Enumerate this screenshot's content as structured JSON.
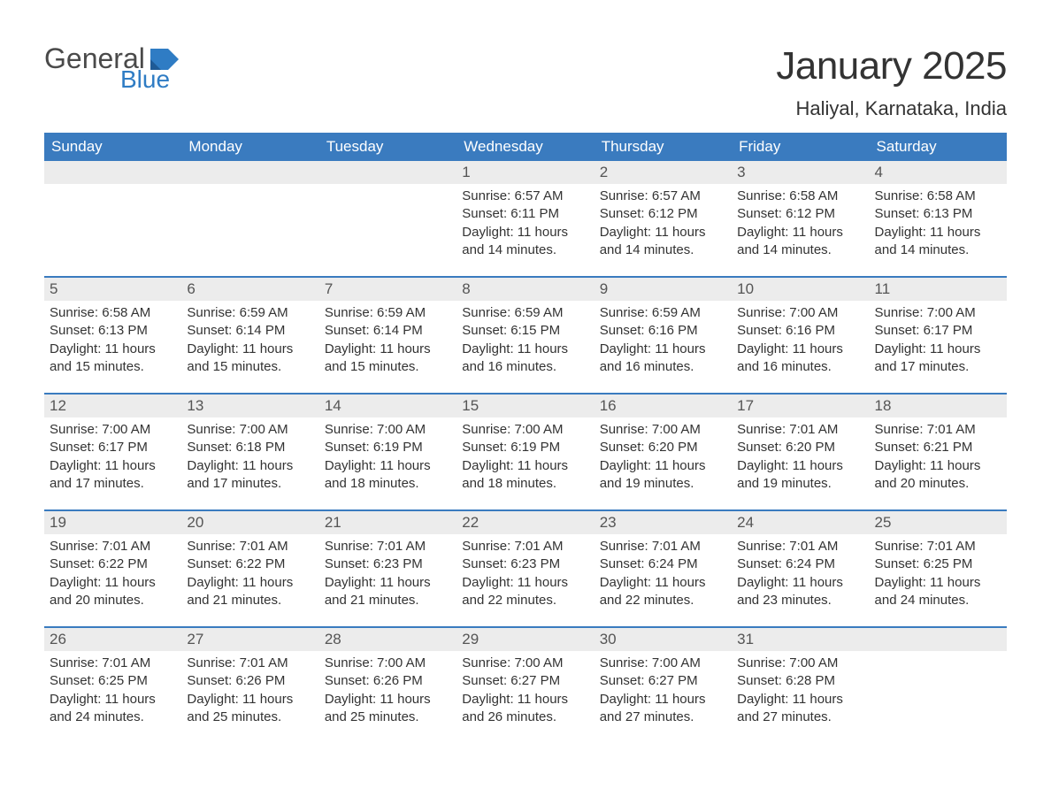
{
  "logo": {
    "general": "General",
    "blue": "Blue",
    "shape_color": "#2f7cc4"
  },
  "title": "January 2025",
  "location": "Haliyal, Karnataka, India",
  "colors": {
    "header_bg": "#3a7bbf",
    "header_text": "#ffffff",
    "daynum_bg": "#ececec",
    "daynum_text": "#555555",
    "body_text": "#333333",
    "week_divider": "#3a7bbf",
    "page_bg": "#ffffff"
  },
  "typography": {
    "title_fontsize": 44,
    "location_fontsize": 22,
    "weekday_fontsize": 17,
    "daynum_fontsize": 17,
    "body_fontsize": 15
  },
  "weekdays": [
    "Sunday",
    "Monday",
    "Tuesday",
    "Wednesday",
    "Thursday",
    "Friday",
    "Saturday"
  ],
  "weeks": [
    [
      {
        "day": "",
        "lines": []
      },
      {
        "day": "",
        "lines": []
      },
      {
        "day": "",
        "lines": []
      },
      {
        "day": "1",
        "lines": [
          "Sunrise: 6:57 AM",
          "Sunset: 6:11 PM",
          "Daylight: 11 hours",
          "and 14 minutes."
        ]
      },
      {
        "day": "2",
        "lines": [
          "Sunrise: 6:57 AM",
          "Sunset: 6:12 PM",
          "Daylight: 11 hours",
          "and 14 minutes."
        ]
      },
      {
        "day": "3",
        "lines": [
          "Sunrise: 6:58 AM",
          "Sunset: 6:12 PM",
          "Daylight: 11 hours",
          "and 14 minutes."
        ]
      },
      {
        "day": "4",
        "lines": [
          "Sunrise: 6:58 AM",
          "Sunset: 6:13 PM",
          "Daylight: 11 hours",
          "and 14 minutes."
        ]
      }
    ],
    [
      {
        "day": "5",
        "lines": [
          "Sunrise: 6:58 AM",
          "Sunset: 6:13 PM",
          "Daylight: 11 hours",
          "and 15 minutes."
        ]
      },
      {
        "day": "6",
        "lines": [
          "Sunrise: 6:59 AM",
          "Sunset: 6:14 PM",
          "Daylight: 11 hours",
          "and 15 minutes."
        ]
      },
      {
        "day": "7",
        "lines": [
          "Sunrise: 6:59 AM",
          "Sunset: 6:14 PM",
          "Daylight: 11 hours",
          "and 15 minutes."
        ]
      },
      {
        "day": "8",
        "lines": [
          "Sunrise: 6:59 AM",
          "Sunset: 6:15 PM",
          "Daylight: 11 hours",
          "and 16 minutes."
        ]
      },
      {
        "day": "9",
        "lines": [
          "Sunrise: 6:59 AM",
          "Sunset: 6:16 PM",
          "Daylight: 11 hours",
          "and 16 minutes."
        ]
      },
      {
        "day": "10",
        "lines": [
          "Sunrise: 7:00 AM",
          "Sunset: 6:16 PM",
          "Daylight: 11 hours",
          "and 16 minutes."
        ]
      },
      {
        "day": "11",
        "lines": [
          "Sunrise: 7:00 AM",
          "Sunset: 6:17 PM",
          "Daylight: 11 hours",
          "and 17 minutes."
        ]
      }
    ],
    [
      {
        "day": "12",
        "lines": [
          "Sunrise: 7:00 AM",
          "Sunset: 6:17 PM",
          "Daylight: 11 hours",
          "and 17 minutes."
        ]
      },
      {
        "day": "13",
        "lines": [
          "Sunrise: 7:00 AM",
          "Sunset: 6:18 PM",
          "Daylight: 11 hours",
          "and 17 minutes."
        ]
      },
      {
        "day": "14",
        "lines": [
          "Sunrise: 7:00 AM",
          "Sunset: 6:19 PM",
          "Daylight: 11 hours",
          "and 18 minutes."
        ]
      },
      {
        "day": "15",
        "lines": [
          "Sunrise: 7:00 AM",
          "Sunset: 6:19 PM",
          "Daylight: 11 hours",
          "and 18 minutes."
        ]
      },
      {
        "day": "16",
        "lines": [
          "Sunrise: 7:00 AM",
          "Sunset: 6:20 PM",
          "Daylight: 11 hours",
          "and 19 minutes."
        ]
      },
      {
        "day": "17",
        "lines": [
          "Sunrise: 7:01 AM",
          "Sunset: 6:20 PM",
          "Daylight: 11 hours",
          "and 19 minutes."
        ]
      },
      {
        "day": "18",
        "lines": [
          "Sunrise: 7:01 AM",
          "Sunset: 6:21 PM",
          "Daylight: 11 hours",
          "and 20 minutes."
        ]
      }
    ],
    [
      {
        "day": "19",
        "lines": [
          "Sunrise: 7:01 AM",
          "Sunset: 6:22 PM",
          "Daylight: 11 hours",
          "and 20 minutes."
        ]
      },
      {
        "day": "20",
        "lines": [
          "Sunrise: 7:01 AM",
          "Sunset: 6:22 PM",
          "Daylight: 11 hours",
          "and 21 minutes."
        ]
      },
      {
        "day": "21",
        "lines": [
          "Sunrise: 7:01 AM",
          "Sunset: 6:23 PM",
          "Daylight: 11 hours",
          "and 21 minutes."
        ]
      },
      {
        "day": "22",
        "lines": [
          "Sunrise: 7:01 AM",
          "Sunset: 6:23 PM",
          "Daylight: 11 hours",
          "and 22 minutes."
        ]
      },
      {
        "day": "23",
        "lines": [
          "Sunrise: 7:01 AM",
          "Sunset: 6:24 PM",
          "Daylight: 11 hours",
          "and 22 minutes."
        ]
      },
      {
        "day": "24",
        "lines": [
          "Sunrise: 7:01 AM",
          "Sunset: 6:24 PM",
          "Daylight: 11 hours",
          "and 23 minutes."
        ]
      },
      {
        "day": "25",
        "lines": [
          "Sunrise: 7:01 AM",
          "Sunset: 6:25 PM",
          "Daylight: 11 hours",
          "and 24 minutes."
        ]
      }
    ],
    [
      {
        "day": "26",
        "lines": [
          "Sunrise: 7:01 AM",
          "Sunset: 6:25 PM",
          "Daylight: 11 hours",
          "and 24 minutes."
        ]
      },
      {
        "day": "27",
        "lines": [
          "Sunrise: 7:01 AM",
          "Sunset: 6:26 PM",
          "Daylight: 11 hours",
          "and 25 minutes."
        ]
      },
      {
        "day": "28",
        "lines": [
          "Sunrise: 7:00 AM",
          "Sunset: 6:26 PM",
          "Daylight: 11 hours",
          "and 25 minutes."
        ]
      },
      {
        "day": "29",
        "lines": [
          "Sunrise: 7:00 AM",
          "Sunset: 6:27 PM",
          "Daylight: 11 hours",
          "and 26 minutes."
        ]
      },
      {
        "day": "30",
        "lines": [
          "Sunrise: 7:00 AM",
          "Sunset: 6:27 PM",
          "Daylight: 11 hours",
          "and 27 minutes."
        ]
      },
      {
        "day": "31",
        "lines": [
          "Sunrise: 7:00 AM",
          "Sunset: 6:28 PM",
          "Daylight: 11 hours",
          "and 27 minutes."
        ]
      },
      {
        "day": "",
        "lines": []
      }
    ]
  ]
}
